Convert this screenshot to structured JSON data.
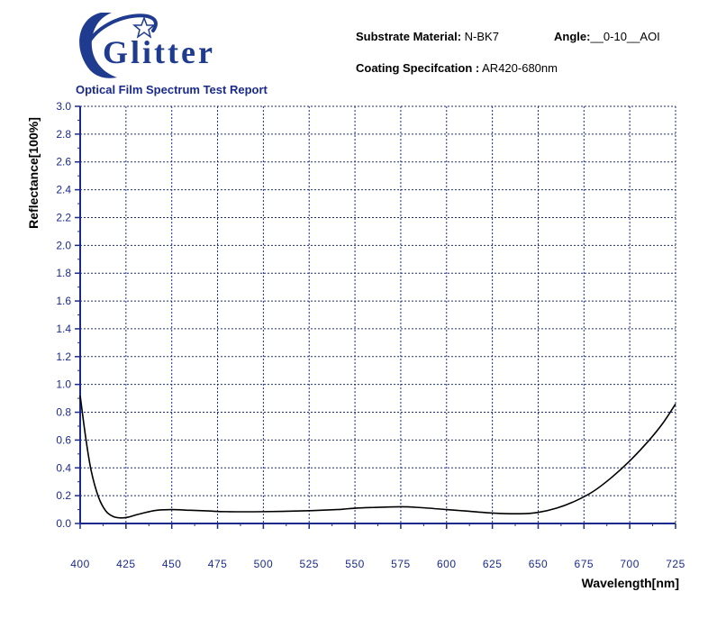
{
  "header": {
    "brand": "Glitter",
    "report_title": "Optical Film Spectrum Test Report",
    "substrate_label": "Substrate Material:",
    "substrate_value": "N-BK7",
    "angle_label": "Angle:",
    "angle_value": "__0-10__AOI",
    "coating_label": "Coating Specifcation :",
    "coating_value": "AR420-680nm"
  },
  "colors": {
    "axis": "#1a2a8c",
    "grid": "#1a2a8c",
    "curve": "#000000",
    "logo": "#1f3b8f"
  },
  "icons": {
    "logo": "glitter-swoosh-star-logo"
  },
  "chart_data": {
    "type": "line",
    "title": "",
    "xlabel": "Wavelength[nm]",
    "ylabel": "Reflectance[100%]",
    "xlim": [
      400,
      725
    ],
    "ylim": [
      0.0,
      3.0
    ],
    "x_ticks": [
      "400",
      "425",
      "450",
      "475",
      "500",
      "525",
      "550",
      "575",
      "600",
      "625",
      "650",
      "675",
      "700",
      "725"
    ],
    "y_ticks": [
      "0.0",
      "0.2",
      "0.4",
      "0.6",
      "0.8",
      "1.0",
      "1.2",
      "1.4",
      "1.6",
      "1.8",
      "2.0",
      "2.2",
      "2.4",
      "2.6",
      "2.8",
      "3.0"
    ],
    "grid": true,
    "series": [
      {
        "x": [
          400,
          403,
          406,
          410,
          414,
          418,
          422,
          426,
          430,
          436,
          442,
          450,
          460,
          470,
          480,
          500,
          520,
          540,
          550,
          560,
          575,
          585,
          600,
          610,
          625,
          640,
          650,
          660,
          670,
          680,
          690,
          700,
          710,
          718,
          725
        ],
        "y": [
          0.92,
          0.62,
          0.38,
          0.19,
          0.09,
          0.05,
          0.04,
          0.045,
          0.06,
          0.08,
          0.095,
          0.1,
          0.095,
          0.09,
          0.085,
          0.085,
          0.09,
          0.1,
          0.11,
          0.115,
          0.12,
          0.115,
          0.1,
          0.09,
          0.075,
          0.07,
          0.08,
          0.11,
          0.16,
          0.23,
          0.33,
          0.45,
          0.59,
          0.72,
          0.86
        ]
      }
    ]
  }
}
